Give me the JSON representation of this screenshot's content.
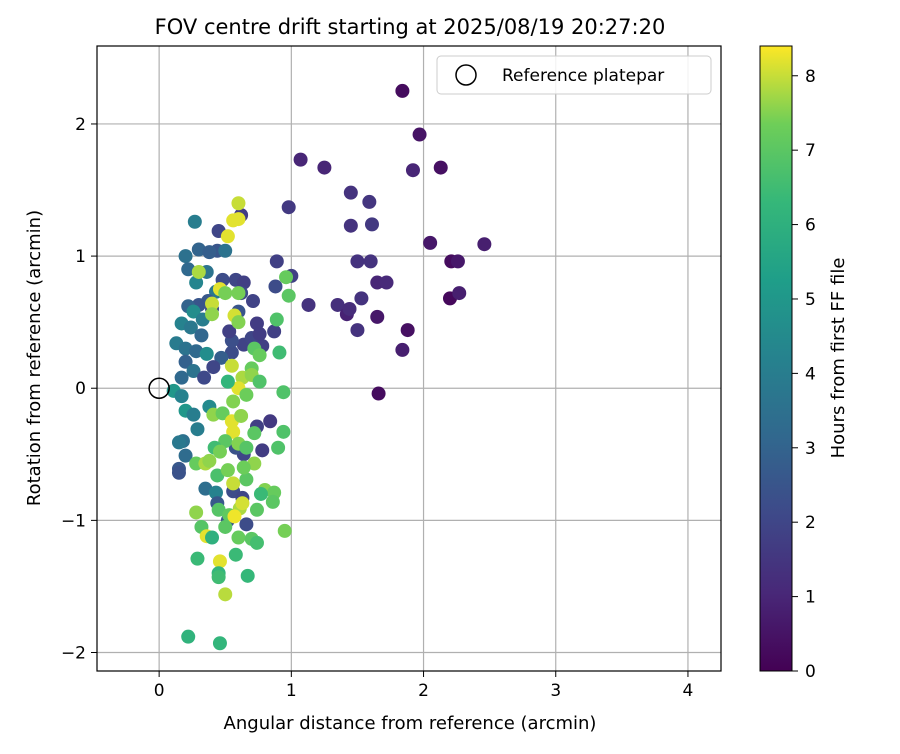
{
  "chart_data": {
    "type": "scatter",
    "title": "FOV centre drift starting at 2025/08/19 20:27:20",
    "xlabel": "Angular distance from reference (arcmin)",
    "ylabel": "Rotation from reference (arcmin)",
    "xlim": [
      -0.47,
      4.25
    ],
    "ylim": [
      -2.14,
      2.59
    ],
    "xticks": [
      0,
      1,
      2,
      3,
      4
    ],
    "yticks": [
      -2,
      -1,
      0,
      1,
      2
    ],
    "grid": true,
    "legend": {
      "position": "top-right",
      "entries": [
        "Reference platepar"
      ]
    },
    "reference_point": {
      "x": 0,
      "y": 0
    },
    "colorbar": {
      "label": "Hours from first FF file",
      "min": 0,
      "max": 8.4,
      "ticks": [
        0,
        1,
        2,
        3,
        4,
        5,
        6,
        7,
        8
      ],
      "colormap": "viridis"
    },
    "points": [
      [
        1.84,
        2.25,
        0.3
      ],
      [
        1.97,
        1.92,
        0.5
      ],
      [
        1.07,
        1.73,
        1.0
      ],
      [
        1.25,
        1.67,
        1.0
      ],
      [
        1.92,
        1.65,
        1.0
      ],
      [
        2.13,
        1.67,
        0.4
      ],
      [
        1.45,
        1.48,
        1.4
      ],
      [
        1.59,
        1.41,
        1.5
      ],
      [
        0.98,
        1.37,
        1.6
      ],
      [
        1.45,
        1.23,
        1.4
      ],
      [
        1.61,
        1.24,
        1.6
      ],
      [
        2.05,
        1.1,
        0.6
      ],
      [
        2.46,
        1.09,
        0.8
      ],
      [
        2.21,
        0.96,
        0.3
      ],
      [
        2.26,
        0.96,
        0.6
      ],
      [
        1.5,
        0.96,
        1.4
      ],
      [
        1.6,
        0.96,
        1.4
      ],
      [
        1.65,
        0.8,
        1.0
      ],
      [
        1.72,
        0.8,
        1.1
      ],
      [
        0.89,
        0.96,
        1.8
      ],
      [
        0.88,
        0.77,
        2.2
      ],
      [
        1.0,
        0.85,
        1.8
      ],
      [
        2.2,
        0.68,
        0.2
      ],
      [
        2.27,
        0.72,
        0.8
      ],
      [
        1.53,
        0.68,
        1.4
      ],
      [
        1.13,
        0.63,
        1.4
      ],
      [
        1.35,
        0.63,
        1.3
      ],
      [
        1.42,
        0.56,
        0.9
      ],
      [
        1.44,
        0.6,
        1.2
      ],
      [
        1.65,
        0.54,
        0.6
      ],
      [
        1.5,
        0.44,
        1.4
      ],
      [
        1.88,
        0.44,
        0.4
      ],
      [
        1.84,
        0.29,
        0.8
      ],
      [
        1.66,
        -0.04,
        0.3
      ],
      [
        0.45,
        1.19,
        2.0
      ],
      [
        0.62,
        1.31,
        1.7
      ],
      [
        0.44,
        1.04,
        2.5
      ],
      [
        0.3,
        1.05,
        3.0
      ],
      [
        0.38,
        1.03,
        2.8
      ],
      [
        0.2,
        1.0,
        3.5
      ],
      [
        0.22,
        0.9,
        3.2
      ],
      [
        0.27,
        1.26,
        4.0
      ],
      [
        0.36,
        0.88,
        3.6
      ],
      [
        0.28,
        0.8,
        4.3
      ],
      [
        0.48,
        0.82,
        2.2
      ],
      [
        0.5,
        1.04,
        3.6
      ],
      [
        0.43,
        0.73,
        3.8
      ],
      [
        0.37,
        0.66,
        2.6
      ],
      [
        0.3,
        0.63,
        2.5
      ],
      [
        0.22,
        0.62,
        3.0
      ],
      [
        0.26,
        0.58,
        4.6
      ],
      [
        0.33,
        0.52,
        4.0
      ],
      [
        0.17,
        0.49,
        4.2
      ],
      [
        0.24,
        0.46,
        3.8
      ],
      [
        0.32,
        0.4,
        3.1
      ],
      [
        0.13,
        0.34,
        3.9
      ],
      [
        0.2,
        0.3,
        3.6
      ],
      [
        0.28,
        0.28,
        3.2
      ],
      [
        0.36,
        0.26,
        4.6
      ],
      [
        0.2,
        0.2,
        2.9
      ],
      [
        0.26,
        0.13,
        3.6
      ],
      [
        0.17,
        0.08,
        3.2
      ],
      [
        0.11,
        -0.02,
        5.0
      ],
      [
        0.17,
        -0.06,
        4.2
      ],
      [
        0.2,
        -0.17,
        5.0
      ],
      [
        0.26,
        -0.2,
        4.0
      ],
      [
        0.38,
        -0.14,
        4.5
      ],
      [
        0.29,
        -0.31,
        4.0
      ],
      [
        0.18,
        -0.4,
        3.5
      ],
      [
        0.15,
        -0.41,
        3.8
      ],
      [
        0.2,
        -0.51,
        3.3
      ],
      [
        0.15,
        -0.61,
        2.6
      ],
      [
        0.15,
        -0.64,
        2.4
      ],
      [
        0.35,
        -0.76,
        3.4
      ],
      [
        0.43,
        -0.79,
        4.2
      ],
      [
        0.58,
        0.82,
        2.0
      ],
      [
        0.64,
        0.8,
        1.8
      ],
      [
        0.62,
        0.72,
        2.2
      ],
      [
        0.71,
        0.66,
        1.9
      ],
      [
        0.74,
        0.49,
        1.7
      ],
      [
        0.87,
        0.43,
        1.8
      ],
      [
        0.71,
        0.35,
        2.0
      ],
      [
        0.78,
        0.32,
        1.8
      ],
      [
        0.64,
        0.33,
        1.9
      ],
      [
        0.55,
        0.27,
        2.2
      ],
      [
        0.47,
        0.23,
        2.8
      ],
      [
        0.41,
        0.16,
        2.0
      ],
      [
        0.34,
        0.08,
        2.1
      ],
      [
        0.55,
        0.36,
        2.3
      ],
      [
        0.6,
        0.58,
        2.5
      ],
      [
        0.7,
        0.38,
        2.0
      ],
      [
        0.53,
        0.43,
        1.8
      ],
      [
        0.4,
        0.6,
        2.2
      ],
      [
        0.76,
        0.41,
        1.7
      ],
      [
        0.84,
        -0.25,
        1.6
      ],
      [
        0.74,
        -0.29,
        1.8
      ],
      [
        0.78,
        -0.47,
        1.7
      ],
      [
        0.64,
        -0.5,
        2.0
      ],
      [
        0.58,
        -0.45,
        2.4
      ],
      [
        0.44,
        -0.87,
        2.6
      ],
      [
        0.56,
        -0.78,
        2.2
      ],
      [
        0.63,
        -0.83,
        2.0
      ],
      [
        0.66,
        -1.03,
        2.2
      ],
      [
        0.52,
        -1.0,
        2.5
      ],
      [
        0.3,
        0.88,
        7.8
      ],
      [
        0.4,
        0.64,
        8.0
      ],
      [
        0.4,
        0.56,
        7.6
      ],
      [
        0.46,
        0.75,
        8.2
      ],
      [
        0.5,
        0.72,
        7.4
      ],
      [
        0.57,
        0.55,
        8.1
      ],
      [
        0.6,
        1.4,
        8.0
      ],
      [
        0.56,
        1.27,
        8.2
      ],
      [
        0.6,
        1.28,
        8.2
      ],
      [
        0.52,
        1.15,
        8.2
      ],
      [
        0.6,
        0.5,
        7.5
      ],
      [
        0.6,
        0.72,
        7.4
      ],
      [
        0.96,
        0.84,
        7.2
      ],
      [
        0.98,
        0.7,
        7.0
      ],
      [
        0.89,
        0.52,
        6.8
      ],
      [
        0.72,
        0.3,
        7.0
      ],
      [
        0.76,
        0.25,
        7.2
      ],
      [
        0.91,
        0.27,
        6.5
      ],
      [
        0.7,
        0.15,
        7.2
      ],
      [
        0.63,
        0.08,
        7.8
      ],
      [
        0.7,
        0.1,
        7.6
      ],
      [
        0.55,
        0.17,
        8.0
      ],
      [
        0.6,
        0.0,
        8.2
      ],
      [
        0.52,
        0.05,
        6.2
      ],
      [
        0.66,
        -0.05,
        7.3
      ],
      [
        0.76,
        0.05,
        6.8
      ],
      [
        0.94,
        -0.03,
        6.8
      ],
      [
        0.41,
        -0.2,
        7.6
      ],
      [
        0.48,
        -0.19,
        7.2
      ],
      [
        0.55,
        -0.25,
        8.2
      ],
      [
        0.56,
        -0.1,
        7.5
      ],
      [
        0.62,
        -0.21,
        7.6
      ],
      [
        0.72,
        -0.34,
        7.0
      ],
      [
        0.94,
        -0.33,
        6.8
      ],
      [
        0.56,
        -0.33,
        8.2
      ],
      [
        0.5,
        -0.4,
        7.0
      ],
      [
        0.42,
        -0.45,
        6.5
      ],
      [
        0.46,
        -0.48,
        7.4
      ],
      [
        0.6,
        -0.42,
        7.5
      ],
      [
        0.66,
        -0.45,
        6.9
      ],
      [
        0.72,
        -0.57,
        7.6
      ],
      [
        0.9,
        -0.45,
        6.8
      ],
      [
        0.28,
        -0.57,
        7.2
      ],
      [
        0.35,
        -0.57,
        7.8
      ],
      [
        0.38,
        -0.55,
        7.6
      ],
      [
        0.44,
        -0.66,
        6.7
      ],
      [
        0.52,
        -0.62,
        7.4
      ],
      [
        0.56,
        -0.72,
        8.0
      ],
      [
        0.66,
        -0.69,
        7.0
      ],
      [
        0.8,
        -0.77,
        7.5
      ],
      [
        0.87,
        -0.79,
        7.2
      ],
      [
        0.45,
        -0.92,
        6.9
      ],
      [
        0.61,
        -0.91,
        7.8
      ],
      [
        0.63,
        -0.87,
        8.1
      ],
      [
        0.74,
        -0.92,
        7.0
      ],
      [
        0.53,
        -0.96,
        7.1
      ],
      [
        0.57,
        -0.97,
        8.3
      ],
      [
        0.5,
        -1.05,
        7.0
      ],
      [
        0.28,
        -0.94,
        7.6
      ],
      [
        0.32,
        -1.05,
        6.9
      ],
      [
        0.36,
        -1.12,
        8.2
      ],
      [
        0.4,
        -1.13,
        6.0
      ],
      [
        0.6,
        -1.13,
        7.2
      ],
      [
        0.7,
        -1.14,
        7.0
      ],
      [
        0.74,
        -1.17,
        6.6
      ],
      [
        0.95,
        -1.08,
        7.4
      ],
      [
        0.46,
        -1.31,
        8.2
      ],
      [
        0.29,
        -1.29,
        6.4
      ],
      [
        0.58,
        -1.26,
        6.4
      ],
      [
        0.45,
        -1.4,
        6.2
      ],
      [
        0.45,
        -1.43,
        6.5
      ],
      [
        0.67,
        -1.42,
        6.3
      ],
      [
        0.5,
        -1.56,
        7.9
      ],
      [
        0.22,
        -1.88,
        6.1
      ],
      [
        0.46,
        -1.93,
        6.2
      ],
      [
        0.86,
        -0.86,
        7.0
      ],
      [
        0.77,
        -0.8,
        6.4
      ],
      [
        0.64,
        -0.6,
        7.3
      ]
    ]
  }
}
